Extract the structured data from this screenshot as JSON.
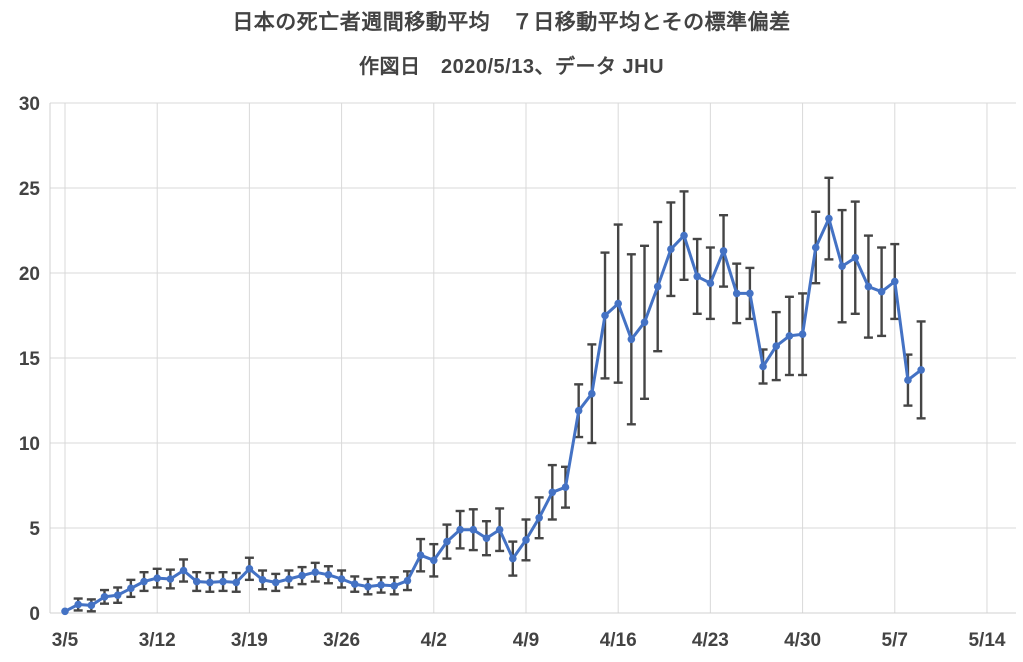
{
  "chart_data": {
    "type": "line",
    "title": "日本の死亡者週間移動平均　７日移動平均とその標準偏差",
    "subtitle": "作図日　2020/5/13、データ JHU",
    "xlabel": "",
    "ylabel": "",
    "ylim": [
      0,
      30
    ],
    "y_ticks": [
      0,
      5,
      10,
      15,
      20,
      25,
      30
    ],
    "x_tick_labels": [
      "3/5",
      "3/12",
      "3/19",
      "3/26",
      "4/2",
      "4/9",
      "4/16",
      "4/23",
      "4/30",
      "5/7",
      "5/14"
    ],
    "x_tick_day_index": [
      0,
      7,
      14,
      21,
      28,
      35,
      42,
      49,
      56,
      63,
      70
    ],
    "grid": "on",
    "legend": "none",
    "series": [
      {
        "name": "7日移動平均",
        "marker": "circle",
        "error_bars": "standard-deviation",
        "x": [
          "3/5",
          "3/6",
          "3/7",
          "3/8",
          "3/9",
          "3/10",
          "3/11",
          "3/12",
          "3/13",
          "3/14",
          "3/15",
          "3/16",
          "3/17",
          "3/18",
          "3/19",
          "3/20",
          "3/21",
          "3/22",
          "3/23",
          "3/24",
          "3/25",
          "3/26",
          "3/27",
          "3/28",
          "3/29",
          "3/30",
          "3/31",
          "4/1",
          "4/2",
          "4/3",
          "4/4",
          "4/5",
          "4/6",
          "4/7",
          "4/8",
          "4/9",
          "4/10",
          "4/11",
          "4/12",
          "4/13",
          "4/14",
          "4/15",
          "4/16",
          "4/17",
          "4/18",
          "4/19",
          "4/20",
          "4/21",
          "4/22",
          "4/23",
          "4/24",
          "4/25",
          "4/26",
          "4/27",
          "4/28",
          "4/29",
          "4/30",
          "5/1",
          "5/2",
          "5/3",
          "5/4",
          "5/5",
          "5/6",
          "5/7",
          "5/8",
          "5/9"
        ],
        "values": [
          0.1,
          0.5,
          0.45,
          0.95,
          1.05,
          1.45,
          1.85,
          2.05,
          2.0,
          2.5,
          1.85,
          1.8,
          1.85,
          1.8,
          2.6,
          1.95,
          1.8,
          2.0,
          2.2,
          2.4,
          2.25,
          2.0,
          1.7,
          1.55,
          1.65,
          1.6,
          1.9,
          3.4,
          3.1,
          4.2,
          4.9,
          4.9,
          4.4,
          4.9,
          3.2,
          4.3,
          5.6,
          7.1,
          7.4,
          11.9,
          12.9,
          17.5,
          18.2,
          16.1,
          17.1,
          19.2,
          21.4,
          22.2,
          19.8,
          19.4,
          21.3,
          18.8,
          18.8,
          14.5,
          15.7,
          16.3,
          16.4,
          21.5,
          23.2,
          20.4,
          20.9,
          19.2,
          18.9,
          19.5,
          13.7,
          14.3
        ],
        "sd": [
          0.1,
          0.35,
          0.35,
          0.4,
          0.45,
          0.5,
          0.55,
          0.55,
          0.55,
          0.65,
          0.55,
          0.55,
          0.55,
          0.55,
          0.65,
          0.55,
          0.5,
          0.5,
          0.5,
          0.55,
          0.5,
          0.5,
          0.45,
          0.45,
          0.45,
          0.5,
          0.55,
          0.95,
          0.95,
          1.0,
          1.1,
          1.2,
          1.0,
          1.25,
          1.0,
          1.2,
          1.2,
          1.6,
          1.2,
          1.55,
          2.9,
          3.7,
          4.65,
          5.0,
          4.5,
          3.8,
          2.75,
          2.6,
          2.2,
          2.1,
          2.1,
          1.75,
          1.5,
          1.0,
          2.0,
          2.3,
          2.4,
          2.1,
          2.4,
          3.3,
          3.3,
          3.0,
          2.6,
          2.2,
          1.5,
          2.85
        ]
      }
    ],
    "colors": {
      "line": "#4472C4",
      "marker": "#4472C4",
      "error_bar": "#454545",
      "gridline": "#D9D9D9",
      "axis_line": "#D0D0D0",
      "tick_label": "#434343",
      "title_text": "#434343",
      "background": "#FFFFFF"
    }
  }
}
